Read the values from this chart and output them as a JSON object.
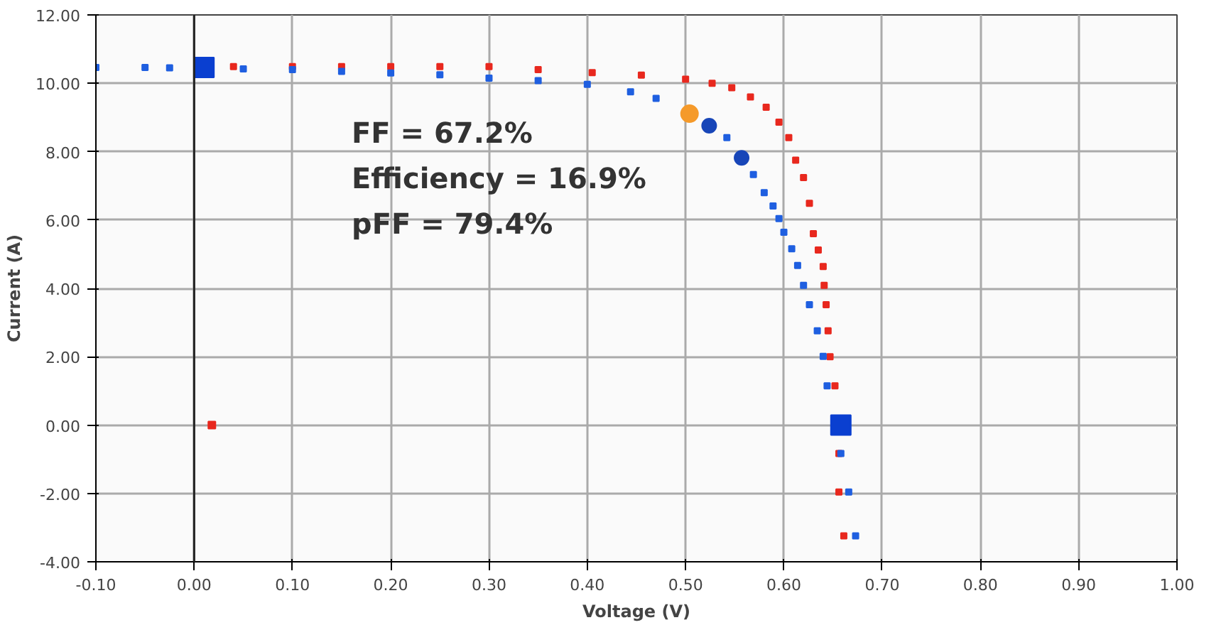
{
  "chart_data": {
    "type": "scatter",
    "xlabel": "Voltage (V)",
    "ylabel": "Current (A)",
    "xlim": [
      -0.1,
      1.0
    ],
    "ylim": [
      -4,
      12
    ],
    "xticks": [
      {
        "value": -0.1,
        "label": "-0.10"
      },
      {
        "value": 0,
        "label": "0.00"
      },
      {
        "value": 0.1,
        "label": "0.10"
      },
      {
        "value": 0.2,
        "label": "0.20"
      },
      {
        "value": 0.3,
        "label": "0.30"
      },
      {
        "value": 0.4,
        "label": "0.40"
      },
      {
        "value": 0.5,
        "label": "0.50"
      },
      {
        "value": 0.6,
        "label": "0.60"
      },
      {
        "value": 0.7,
        "label": "0.70"
      },
      {
        "value": 0.8,
        "label": "0.80"
      },
      {
        "value": 0.9,
        "label": "0.90"
      },
      {
        "value": 1.0,
        "label": "1.00"
      }
    ],
    "yticks": [
      {
        "value": -4,
        "label": "-4.00"
      },
      {
        "value": -2,
        "label": "-2.00"
      },
      {
        "value": 0,
        "label": "0.00"
      },
      {
        "value": 2,
        "label": "2.00"
      },
      {
        "value": 4,
        "label": "4.00"
      },
      {
        "value": 6,
        "label": "6.00"
      },
      {
        "value": 8,
        "label": "8.00"
      },
      {
        "value": 10,
        "label": "10.00"
      },
      {
        "value": 12,
        "label": "12.00"
      }
    ],
    "grid": true,
    "marker": "square",
    "ref_lines": [
      {
        "axis": "x",
        "value": 0,
        "color": "#222222"
      }
    ],
    "annotations": [
      "FF = 67.2%",
      "Efficiency = 16.9%",
      "pFF = 79.4%"
    ],
    "series": [
      {
        "color": "#e8281e",
        "x": [
          0.04,
          0.1,
          0.15,
          0.2,
          0.25,
          0.3,
          0.35,
          0.405,
          0.455,
          0.5,
          0.527,
          0.547,
          0.566,
          0.582,
          0.595,
          0.605,
          0.612,
          0.62,
          0.626,
          0.63,
          0.635,
          0.64,
          0.641,
          0.643,
          0.645,
          0.647,
          0.652,
          0.656,
          0.656,
          0.661
        ],
        "values": [
          10.49,
          10.49,
          10.49,
          10.49,
          10.49,
          10.49,
          10.4,
          10.31,
          10.24,
          10.12,
          10.0,
          9.87,
          9.6,
          9.3,
          8.86,
          8.41,
          7.75,
          7.24,
          6.49,
          5.6,
          5.12,
          4.64,
          4.09,
          3.52,
          2.76,
          2.0,
          1.15,
          -0.83,
          -1.96,
          -3.24
        ]
      },
      {
        "color": "#1f5fe0",
        "x": [
          -0.1,
          -0.05,
          -0.025,
          0.05,
          0.1,
          0.15,
          0.2,
          0.25,
          0.3,
          0.35,
          0.4,
          0.444,
          0.47,
          0.542,
          0.569,
          0.58,
          0.589,
          0.595,
          0.6,
          0.608,
          0.614,
          0.62,
          0.626,
          0.634,
          0.64,
          0.644,
          0.658,
          0.666,
          0.673
        ],
        "values": [
          10.46,
          10.46,
          10.45,
          10.42,
          10.4,
          10.35,
          10.3,
          10.25,
          10.15,
          10.08,
          9.97,
          9.75,
          9.56,
          8.41,
          7.33,
          6.8,
          6.41,
          6.04,
          5.64,
          5.16,
          4.67,
          4.09,
          3.52,
          2.76,
          2.01,
          1.15,
          -0.83,
          -1.96,
          -3.24
        ]
      },
      {
        "color": "#e8281e",
        "x": [
          0.018
        ],
        "values": [
          0.0
        ]
      },
      {
        "color": "#0a3fd0",
        "x": [
          0.01,
          0.658
        ],
        "values": [
          10.46,
          0.0
        ]
      },
      {
        "color": "#f59a2a",
        "marker": "circle",
        "x": [
          0.504
        ],
        "values": [
          9.11
        ]
      },
      {
        "color": "#1846b8",
        "marker": "circle",
        "x": [
          0.524,
          0.557
        ],
        "values": [
          8.76,
          7.82
        ]
      }
    ]
  }
}
